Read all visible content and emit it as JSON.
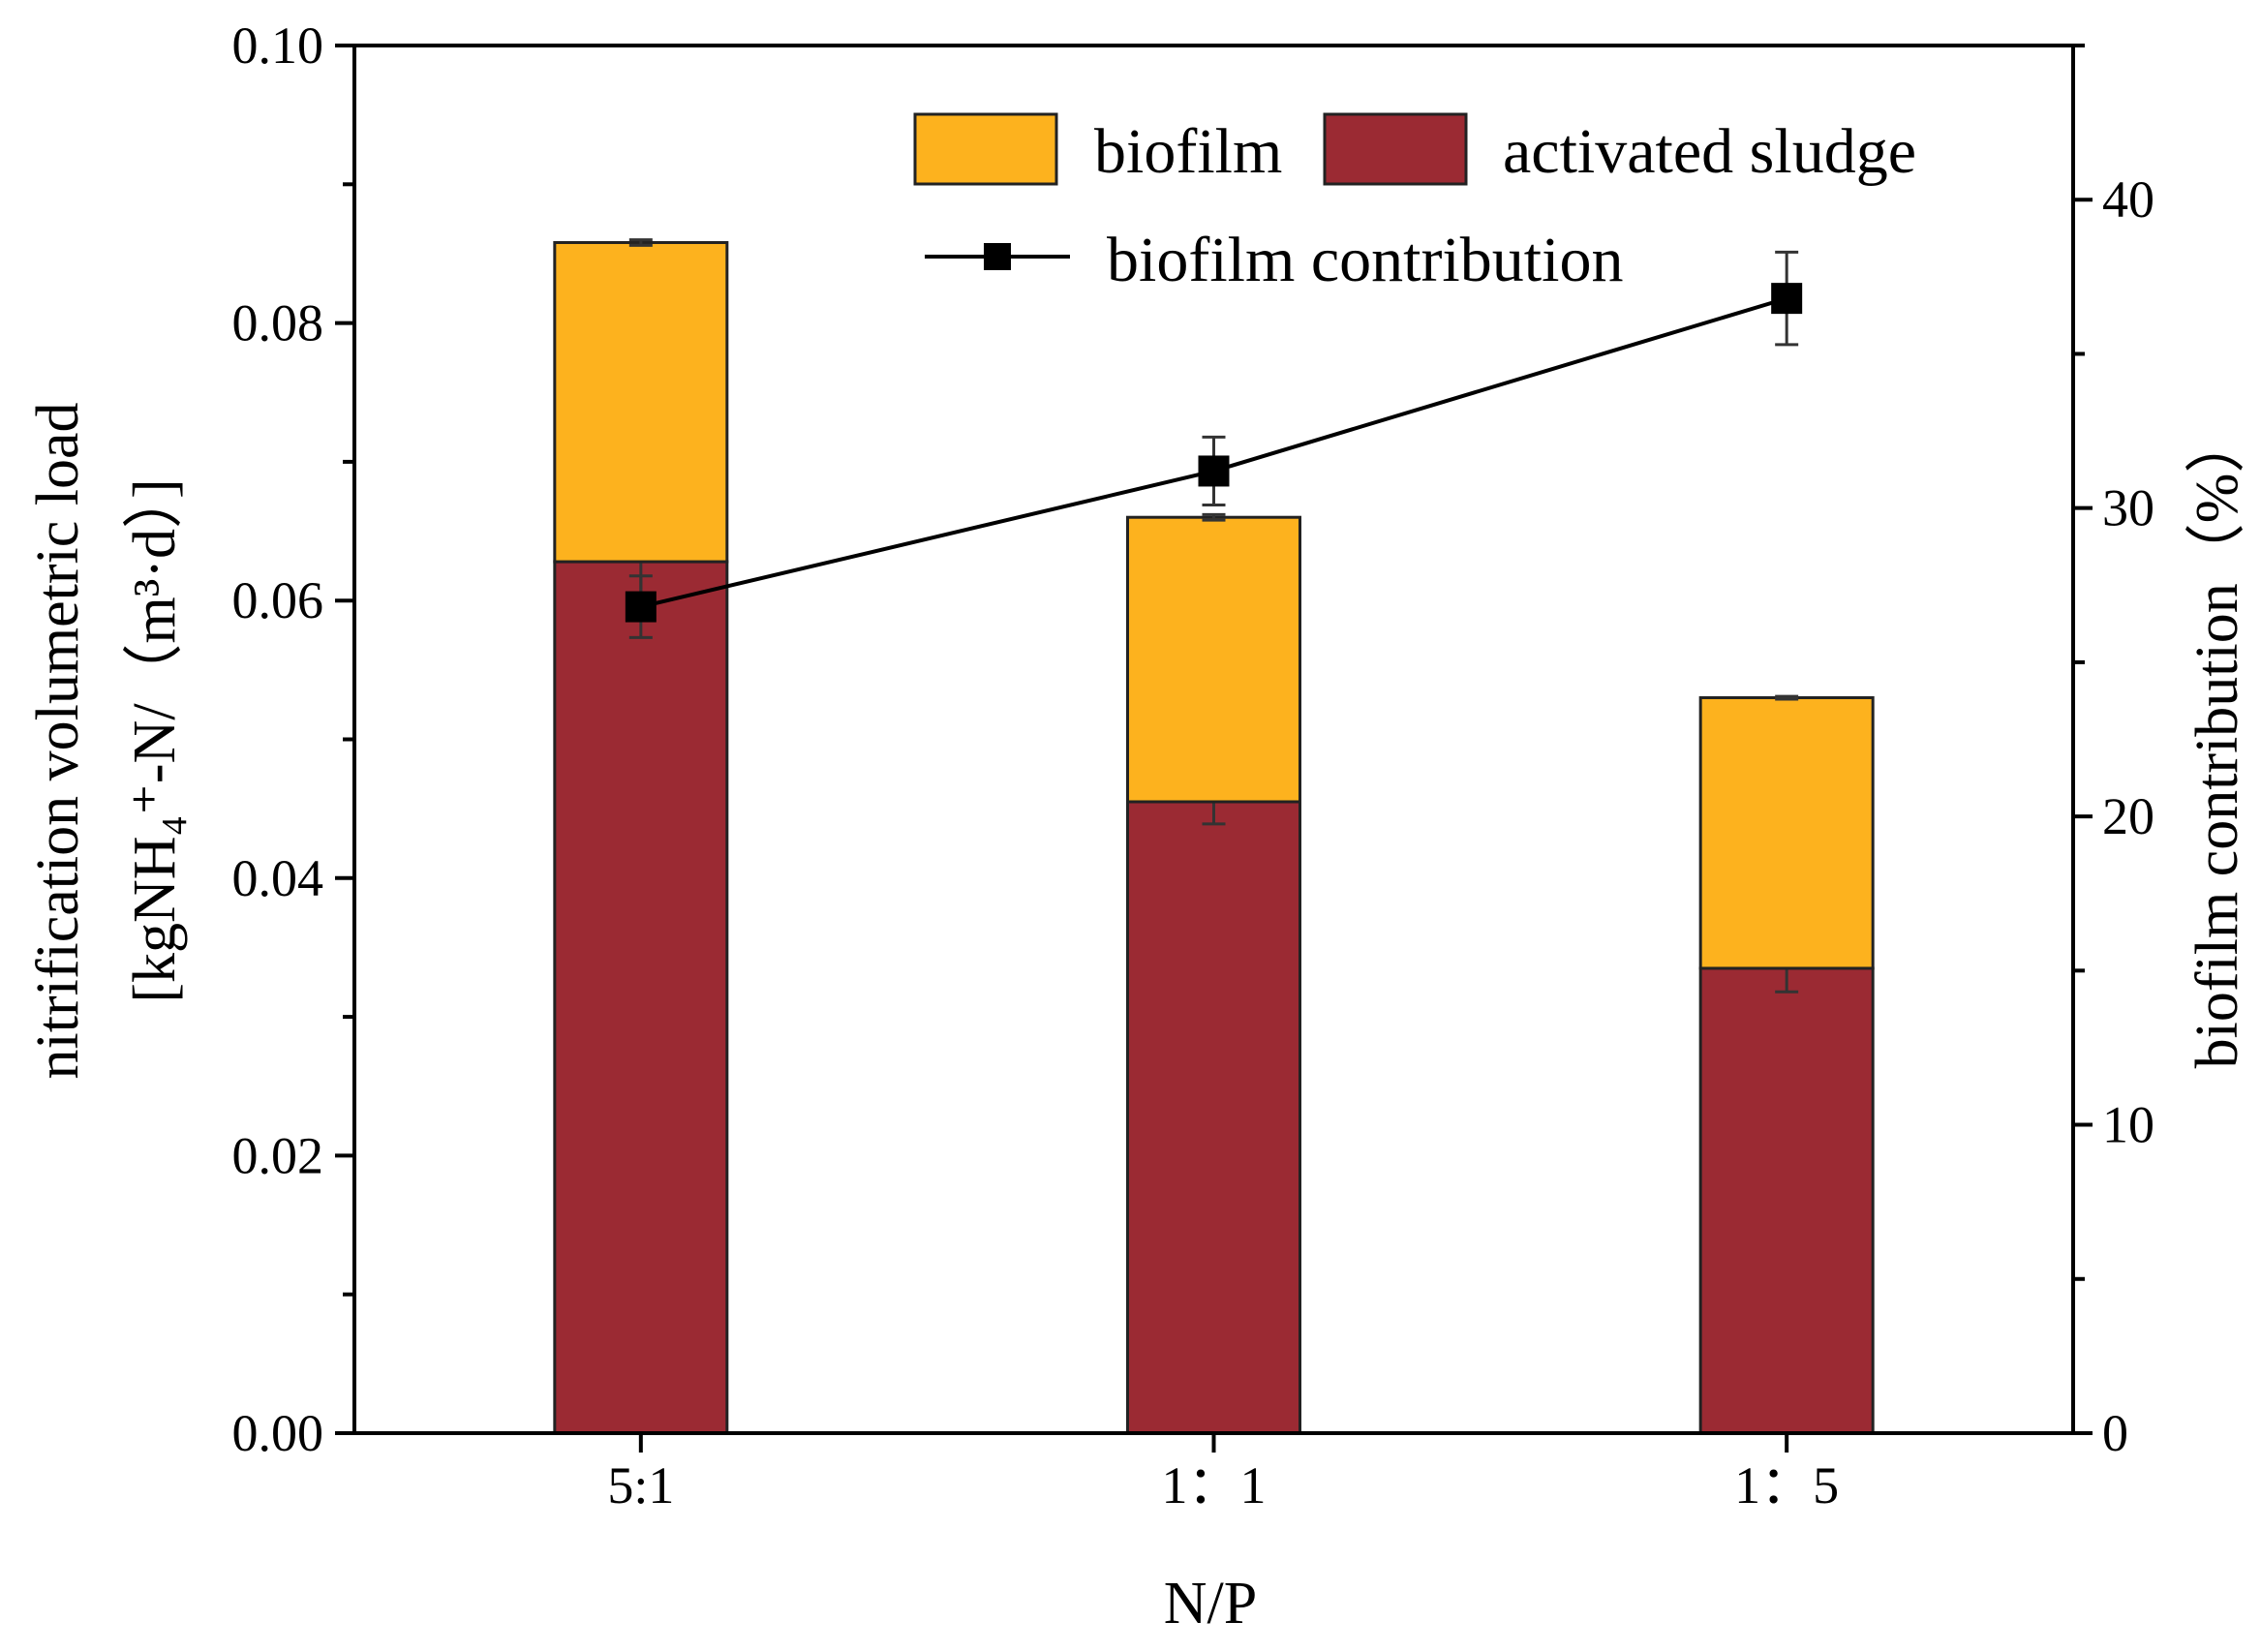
{
  "chart_data": {
    "type": "bar",
    "stacked": true,
    "categories": [
      "5:1",
      "1：1",
      "1：5"
    ],
    "series": [
      {
        "name": "activated sludge",
        "color": "#9b2a33",
        "values": [
          0.0628,
          0.0455,
          0.0335
        ],
        "errors": [
          0.0023,
          0.0016,
          0.0017
        ],
        "axis": "left"
      },
      {
        "name": "biofilm",
        "color": "#fdb21e",
        "values": [
          0.023,
          0.0205,
          0.0195
        ],
        "errors": [
          0.0002,
          0.0002,
          0.0001
        ],
        "axis": "left"
      }
    ],
    "line_series": {
      "name": "biofilm contribution",
      "color": "#000000",
      "marker": "square",
      "values": [
        26.8,
        31.2,
        36.8
      ],
      "errors": [
        1.0,
        1.1,
        1.5
      ],
      "axis": "right"
    },
    "xlabel": "N/P",
    "ylabel_line1": "nitrification volumetric load",
    "ylabel_line2": "[kgNH₄⁺-N/（m³·d）]",
    "ylabel_right": "biofilm contribution（%）",
    "ylim": [
      0,
      0.1
    ],
    "yticks": [
      "0.00",
      "0.02",
      "0.04",
      "0.06",
      "0.08",
      "0.10"
    ],
    "ylim_right": [
      0,
      45
    ],
    "yticks_right": [
      "0",
      "10",
      "20",
      "30",
      "40"
    ],
    "legend": {
      "biofilm": "biofilm",
      "activated_sludge": "activated sludge",
      "contribution": "biofilm contribution",
      "placement": "top-right"
    }
  }
}
